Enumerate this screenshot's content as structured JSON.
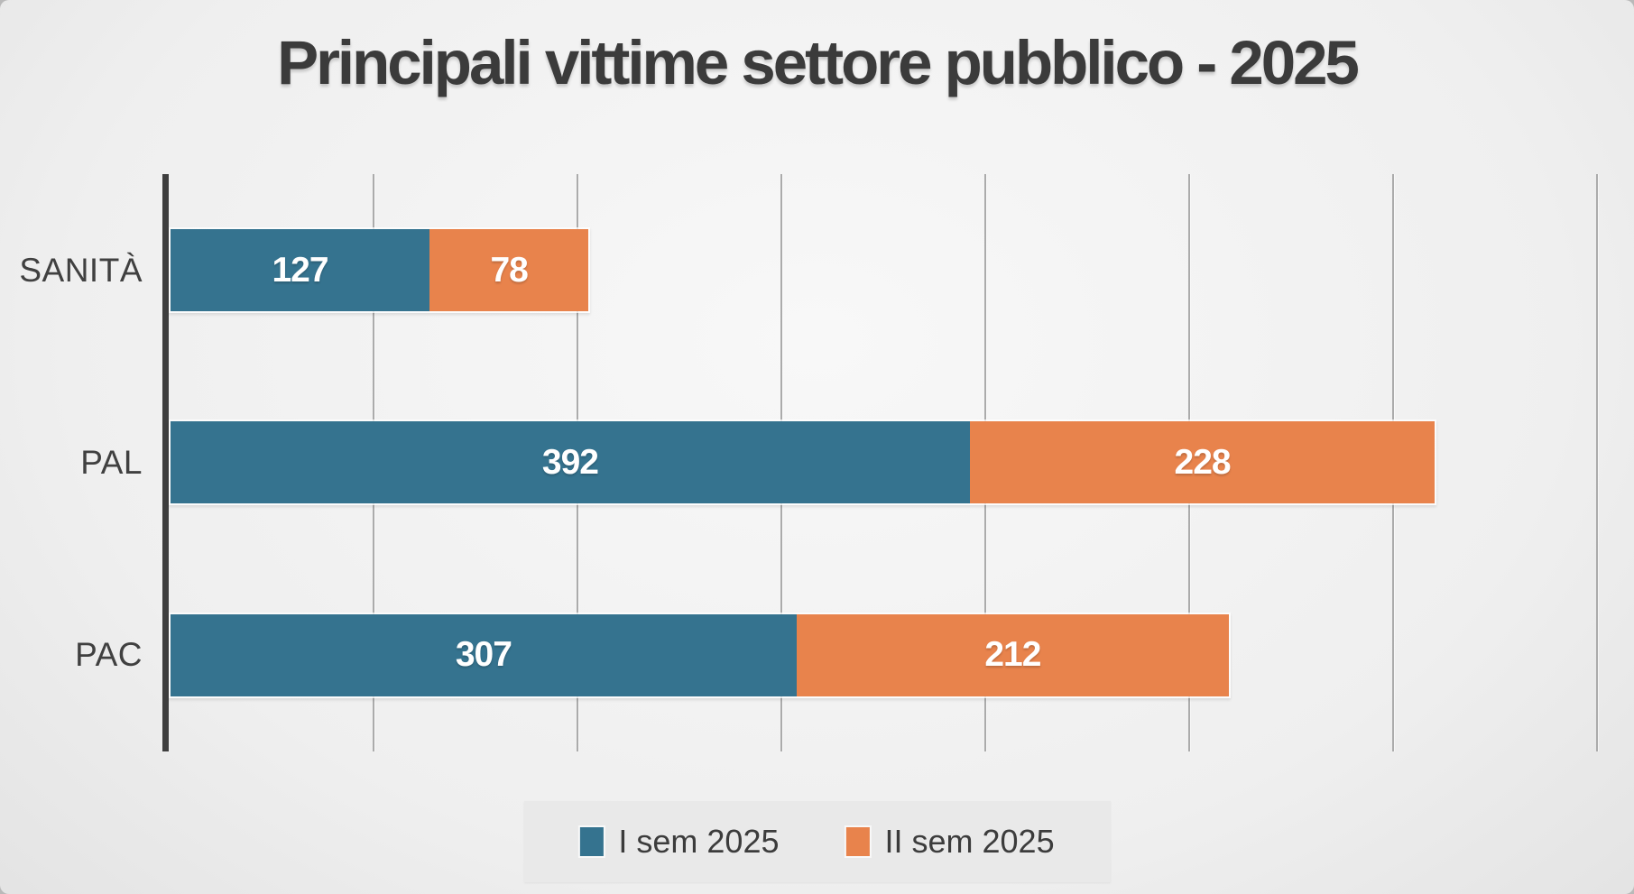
{
  "chart_data": {
    "type": "bar",
    "orientation": "horizontal-stacked",
    "title": "Principali vittime settore pubblico - 2025",
    "categories": [
      "SANITÀ",
      "PAL",
      "PAC"
    ],
    "series": [
      {
        "name": "I sem 2025",
        "color": "#35738F",
        "values": [
          127,
          392,
          307
        ]
      },
      {
        "name": "II sem 2025",
        "color": "#E8834C",
        "values": [
          78,
          228,
          212
        ]
      }
    ],
    "xlim": [
      0,
      700
    ],
    "gridline_step": 100,
    "grid": true,
    "legend_position": "bottom",
    "value_labels": "inside-center",
    "axis_color": "#3e3e3e",
    "gridline_color": "#ababab",
    "title_color": "#3b3b3b",
    "label_color": "#404040"
  }
}
